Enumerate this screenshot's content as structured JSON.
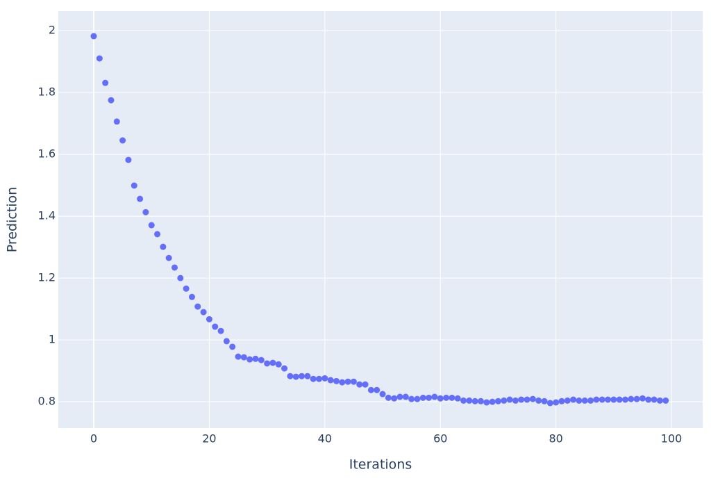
{
  "chart_data": {
    "type": "scatter",
    "x_label": "Iterations",
    "y_label": "Prediction",
    "color": "#636efa",
    "background": "#e5ecf6",
    "grid": true,
    "xlim": [
      -6.13,
      105.4
    ],
    "ylim": [
      0.715,
      2.063
    ],
    "xticks": [
      0,
      20,
      40,
      60,
      80,
      100
    ],
    "yticks": [
      0.8,
      1,
      1.2,
      1.4,
      1.6,
      1.8,
      2
    ],
    "x": [
      0,
      1,
      2,
      3,
      4,
      5,
      6,
      7,
      8,
      9,
      10,
      11,
      12,
      13,
      14,
      15,
      16,
      17,
      18,
      19,
      20,
      21,
      22,
      23,
      24,
      25,
      26,
      27,
      28,
      29,
      30,
      31,
      32,
      33,
      34,
      35,
      36,
      37,
      38,
      39,
      40,
      41,
      42,
      43,
      44,
      45,
      46,
      47,
      48,
      49,
      50,
      51,
      52,
      53,
      54,
      55,
      56,
      57,
      58,
      59,
      60,
      61,
      62,
      63,
      64,
      65,
      66,
      67,
      68,
      69,
      70,
      71,
      72,
      73,
      74,
      75,
      76,
      77,
      78,
      79,
      80,
      81,
      82,
      83,
      84,
      85,
      86,
      87,
      88,
      89,
      90,
      91,
      92,
      93,
      94,
      95,
      96,
      97,
      98,
      99
    ],
    "values": [
      1.982,
      1.91,
      1.831,
      1.775,
      1.706,
      1.645,
      1.582,
      1.499,
      1.456,
      1.413,
      1.371,
      1.342,
      1.301,
      1.265,
      1.234,
      1.2,
      1.166,
      1.139,
      1.108,
      1.09,
      1.067,
      1.043,
      1.029,
      0.996,
      0.978,
      0.946,
      0.944,
      0.937,
      0.939,
      0.935,
      0.924,
      0.926,
      0.921,
      0.908,
      0.883,
      0.881,
      0.883,
      0.883,
      0.874,
      0.874,
      0.876,
      0.87,
      0.867,
      0.863,
      0.865,
      0.865,
      0.856,
      0.856,
      0.838,
      0.838,
      0.825,
      0.813,
      0.811,
      0.816,
      0.816,
      0.809,
      0.809,
      0.813,
      0.813,
      0.816,
      0.811,
      0.813,
      0.813,
      0.811,
      0.804,
      0.804,
      0.802,
      0.802,
      0.798,
      0.8,
      0.802,
      0.804,
      0.807,
      0.804,
      0.807,
      0.807,
      0.809,
      0.804,
      0.802,
      0.796,
      0.798,
      0.802,
      0.804,
      0.807,
      0.804,
      0.804,
      0.804,
      0.807,
      0.807,
      0.807,
      0.807,
      0.807,
      0.807,
      0.809,
      0.809,
      0.811,
      0.807,
      0.807,
      0.804,
      0.804
    ]
  }
}
